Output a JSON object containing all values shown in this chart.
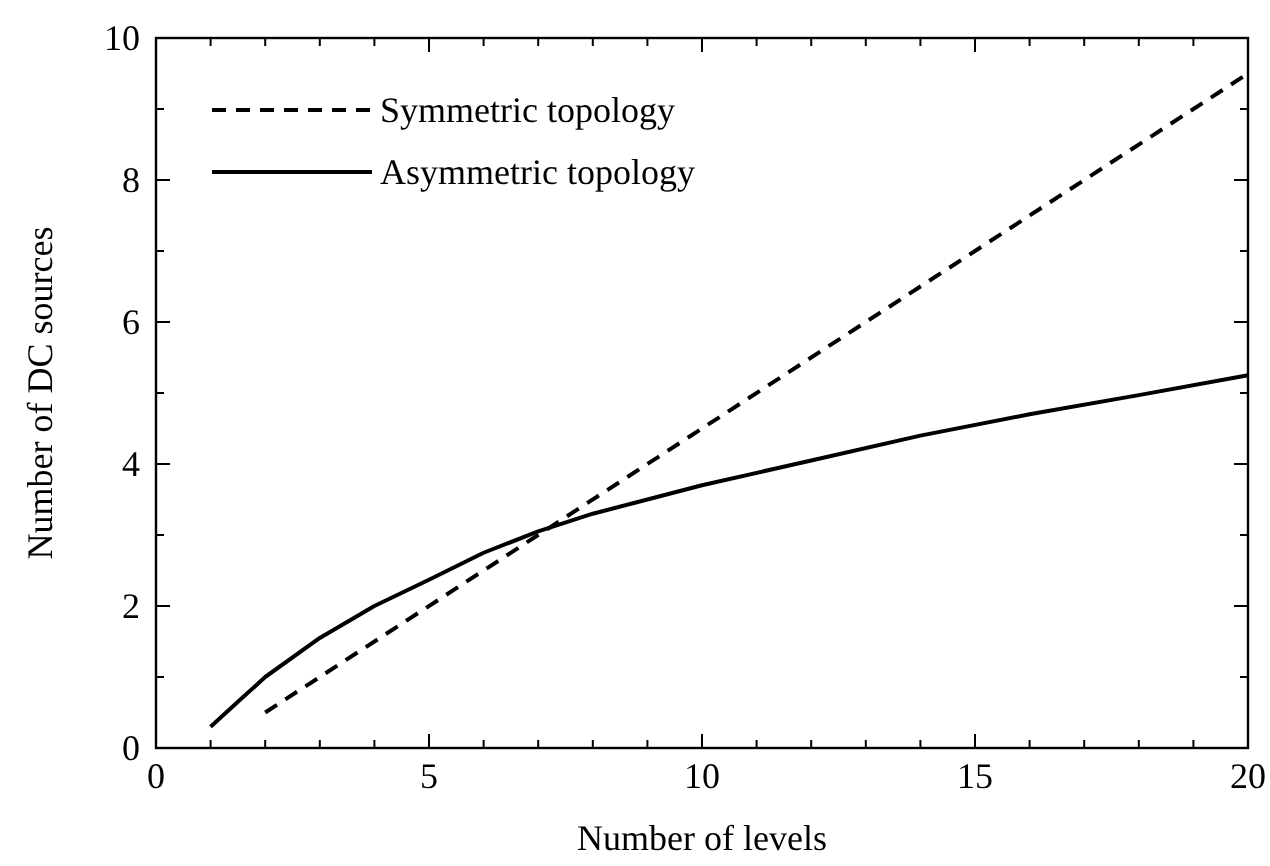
{
  "chart_data": {
    "type": "line",
    "xlabel": "Number of levels",
    "ylabel": "Number of DC sources",
    "xlim": [
      0,
      20
    ],
    "ylim": [
      0,
      10
    ],
    "xticks": [
      0,
      {
        "value": 1,
        "label": null
      },
      {
        "value": 2,
        "label": null
      },
      {
        "value": 3,
        "label": null
      },
      {
        "value": 4,
        "label": null
      },
      5,
      {
        "value": 6,
        "label": null
      },
      {
        "value": 7,
        "label": null
      },
      {
        "value": 8,
        "label": null
      },
      {
        "value": 9,
        "label": null
      },
      10,
      {
        "value": 11,
        "label": null
      },
      {
        "value": 12,
        "label": null
      },
      {
        "value": 13,
        "label": null
      },
      {
        "value": 14,
        "label": null
      },
      15,
      {
        "value": 16,
        "label": null
      },
      {
        "value": 17,
        "label": null
      },
      {
        "value": 18,
        "label": null
      },
      {
        "value": 19,
        "label": null
      },
      20
    ],
    "yticks": [
      0,
      {
        "value": 1,
        "label": null
      },
      2,
      {
        "value": 3,
        "label": null
      },
      4,
      {
        "value": 5,
        "label": null
      },
      6,
      {
        "value": 7,
        "label": null
      },
      8,
      {
        "value": 9,
        "label": null
      },
      10
    ],
    "legend": "top left",
    "grid": false,
    "marker": "none",
    "series": [
      {
        "name": "Symmetric topology",
        "color": "#000000",
        "line_style": "dashed",
        "x": [
          2,
          20
        ],
        "values": [
          0.5,
          9.5
        ]
      },
      {
        "name": "Asymmetric topology",
        "color": "#000000",
        "line_style": "solid",
        "x": [
          1,
          1.5,
          2,
          3,
          4,
          5,
          6,
          7,
          8,
          9,
          10,
          12,
          14,
          16,
          18,
          20
        ],
        "values": [
          0.3,
          0.65,
          1.0,
          1.55,
          2.0,
          2.37,
          2.75,
          3.05,
          3.3,
          3.5,
          3.7,
          4.05,
          4.4,
          4.7,
          4.97,
          5.25
        ]
      }
    ]
  }
}
